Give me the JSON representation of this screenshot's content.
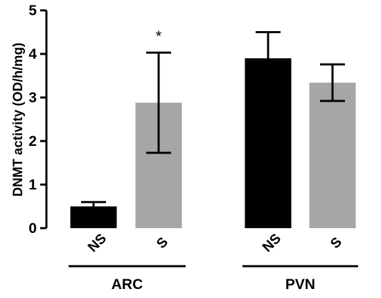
{
  "chart_data": {
    "type": "bar",
    "title": "",
    "ylabel": "DNMT activity (OD/h/mg)",
    "xlabel": "",
    "ylim": [
      0,
      5
    ],
    "yticks": [
      "0",
      "1",
      "2",
      "3",
      "4",
      "5"
    ],
    "grid": false,
    "groups": [
      {
        "label": "ARC",
        "bars": [
          {
            "category": "NS",
            "value": 0.5,
            "error": 0.1,
            "color": "#000000",
            "annotation": ""
          },
          {
            "category": "S",
            "value": 2.88,
            "error": 1.15,
            "color": "#a6a6a6",
            "annotation": "*"
          }
        ]
      },
      {
        "label": "PVN",
        "bars": [
          {
            "category": "NS",
            "value": 3.9,
            "error": 0.6,
            "color": "#000000",
            "annotation": ""
          },
          {
            "category": "S",
            "value": 3.34,
            "error": 0.42,
            "color": "#a6a6a6",
            "annotation": ""
          }
        ]
      }
    ]
  }
}
